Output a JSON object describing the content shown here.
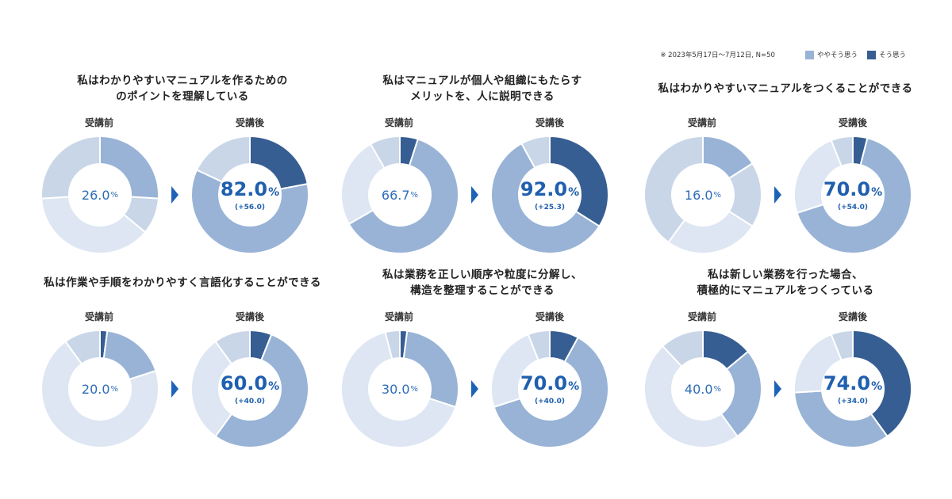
{
  "legend": {
    "note": "※ 2023年5月17日〜7月12日, N=50",
    "items": [
      {
        "label": "ややそう思う",
        "color": "#98b3d6"
      },
      {
        "label": "そう思う",
        "color": "#365e92"
      }
    ]
  },
  "labels": {
    "before": "受講前",
    "after": "受講後",
    "percent": "%"
  },
  "colors": {
    "strong": "#365e92",
    "somewhat": "#98b3d6",
    "neutral": "#c9d6e8",
    "other": "#dde6f2",
    "center_text": "#2e6db6"
  },
  "chart_data": [
    {
      "type": "pie",
      "title": "私はわかりやすいマニュアルを作るための\nのポイントを理解している",
      "before": {
        "display": "26.0",
        "segments": [
          0,
          26,
          10,
          38,
          26
        ]
      },
      "after": {
        "display": "82.0",
        "diff": "(+56.0)",
        "segments": [
          22,
          60,
          0,
          0,
          18
        ]
      }
    },
    {
      "type": "pie",
      "title": "私はマニュアルが個人や組織にもたらす\nメリットを、人に説明できる",
      "before": {
        "display": "66.7",
        "segments": [
          5,
          61.7,
          0,
          25,
          8.3
        ]
      },
      "after": {
        "display": "92.0",
        "diff": "(+25.3)",
        "segments": [
          34,
          58,
          0,
          0,
          8
        ]
      }
    },
    {
      "type": "pie",
      "title": "私はわかりやすいマニュアルをつくることができる",
      "before": {
        "display": "16.0",
        "segments": [
          0,
          16,
          18,
          26,
          40
        ]
      },
      "after": {
        "display": "70.0",
        "diff": "(+54.0)",
        "segments": [
          4,
          66,
          0,
          24,
          6
        ]
      }
    },
    {
      "type": "pie",
      "title": "私は作業や手順をわかりやすく言語化することができる",
      "before": {
        "display": "20.0",
        "segments": [
          2,
          18,
          0,
          70,
          10
        ]
      },
      "after": {
        "display": "60.0",
        "diff": "(+40.0)",
        "segments": [
          6,
          54,
          0,
          30,
          10
        ]
      }
    },
    {
      "type": "pie",
      "title": "私は業務を正しい順序や粒度に分解し、\n構造を整理することができる",
      "before": {
        "display": "30.0",
        "segments": [
          2,
          28,
          0,
          66,
          4
        ]
      },
      "after": {
        "display": "70.0",
        "diff": "(+40.0)",
        "segments": [
          8,
          62,
          0,
          24,
          6
        ]
      }
    },
    {
      "type": "pie",
      "title": "私は新しい業務を行った場合、\n積極的にマニュアルをつくっている",
      "before": {
        "display": "40.0",
        "segments": [
          14,
          26,
          0,
          48,
          12
        ]
      },
      "after": {
        "display": "74.0",
        "diff": "(+34.0)",
        "segments": [
          40,
          34,
          0,
          20,
          6
        ]
      }
    }
  ]
}
